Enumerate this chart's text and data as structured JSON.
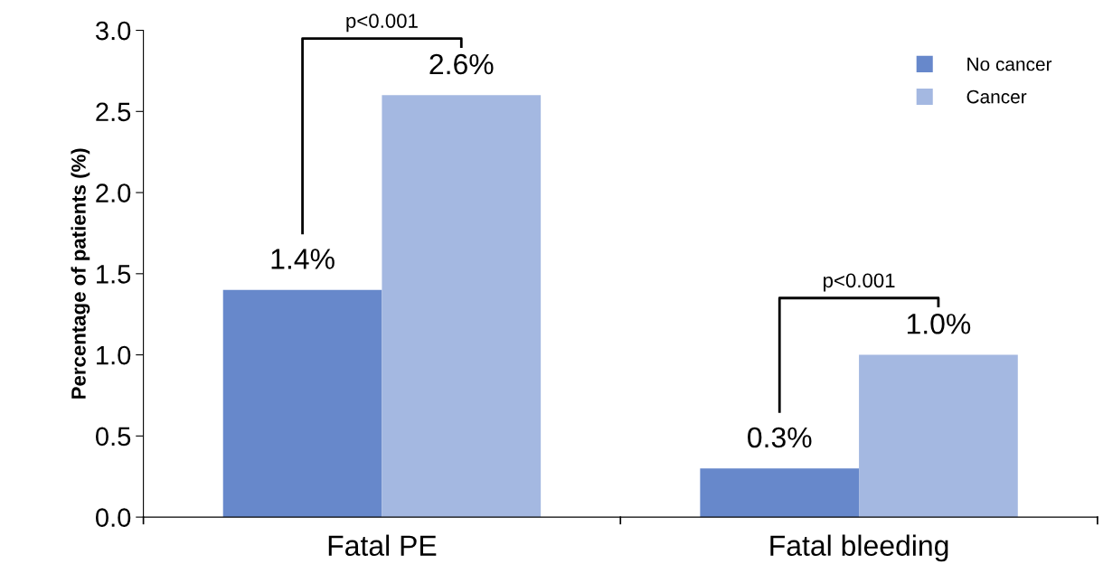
{
  "chart_data": {
    "type": "bar",
    "ylabel": "Percentage of patients (%)",
    "categories": [
      "Fatal PE",
      "Fatal bleeding"
    ],
    "series": [
      {
        "name": "No cancer",
        "color": "#6788cb",
        "values": [
          1.4,
          0.3
        ],
        "value_labels": [
          "1.4%",
          "0.3%"
        ]
      },
      {
        "name": "Cancer",
        "color": "#a4b8e1",
        "values": [
          2.6,
          1.0
        ],
        "value_labels": [
          "2.6%",
          "1.0%"
        ]
      }
    ],
    "ylim": [
      0,
      3.0
    ],
    "yticks": [
      {
        "value": 0,
        "label": "0.0"
      },
      {
        "value": 0.5,
        "label": "0.5"
      },
      {
        "value": 1.0,
        "label": "1.0"
      },
      {
        "value": 1.5,
        "label": "1.5"
      },
      {
        "value": 2.0,
        "label": "2.0"
      },
      {
        "value": 2.5,
        "label": "2.5"
      },
      {
        "value": 3.0,
        "label": "3.0"
      }
    ],
    "annotations": [
      "p<0.001",
      "p<0.001"
    ],
    "legend": "top right",
    "grid": false
  }
}
